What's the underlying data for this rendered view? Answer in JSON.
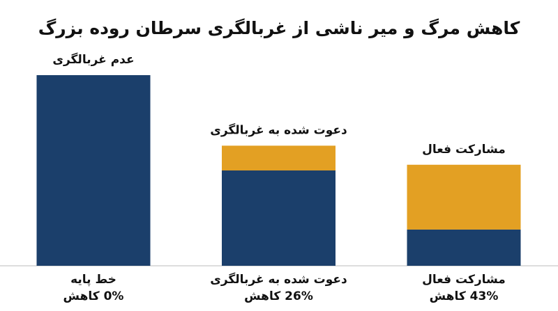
{
  "chart_data": {
    "type": "stacked-bar",
    "title": "کاهش مرگ و میر ناشی از غربالگری سرطان روده بزرگ",
    "bar_labels": [
      "عدم غربالگری",
      "دعوت شده به غربالگری",
      "مشارکت فعال"
    ],
    "categories": [
      "خط پایه",
      "دعوت شده به غربالگری",
      "مشارکت فعال"
    ],
    "sublabels": [
      "0% کاهش",
      "26% کاهش",
      "43% کاهش"
    ],
    "series": [
      {
        "color": "#1b3f6b",
        "values": [
          100,
          50,
          19
        ]
      },
      {
        "color": "#e3a023",
        "values": [
          0,
          13,
          34
        ]
      }
    ],
    "ylim": [
      0,
      100
    ]
  }
}
